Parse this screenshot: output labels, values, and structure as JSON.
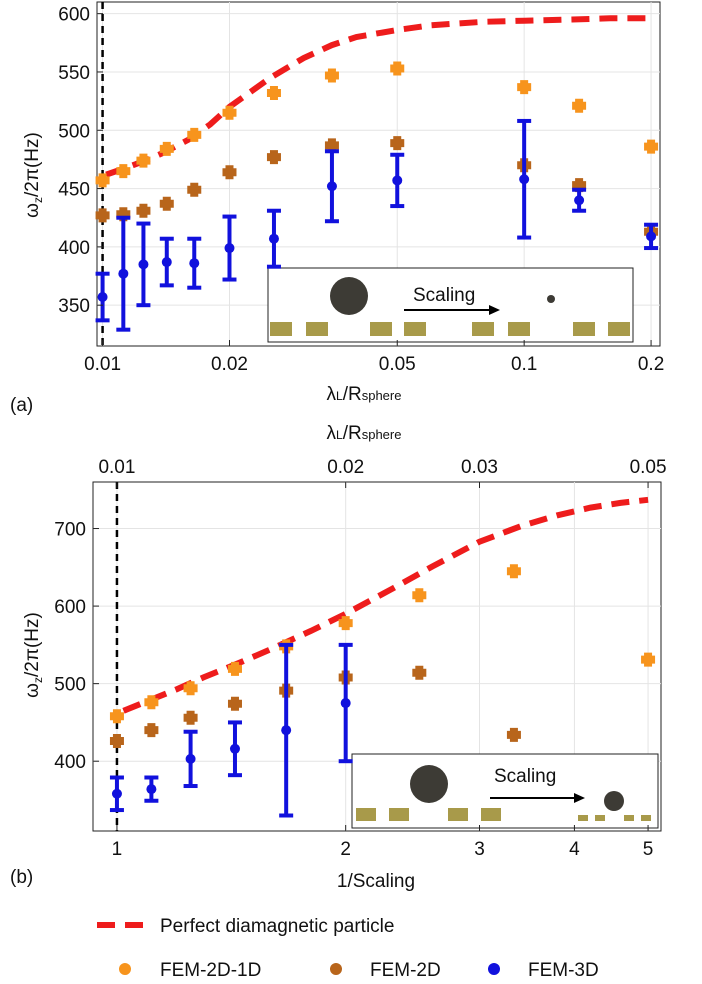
{
  "legend": {
    "perfect": "Perfect diamagnetic particle",
    "fem2d1d": "FEM-2D-1D",
    "fem2d": "FEM-2D",
    "fem3d": "FEM-3D"
  },
  "colors": {
    "perfect": "#ee1c1c",
    "fem2d1d": "#f7941d",
    "fem2d": "#b8651b",
    "fem3d": "#1111dd",
    "magnet": "#a89a4a",
    "sphere": "#3d3b35"
  },
  "chart_data": [
    {
      "panel": "(a)",
      "type": "scatter",
      "xscale": "log",
      "xlabel": "λL/Rsphere",
      "ylabel": "ωz/2π(Hz)",
      "xlim": [
        0.0097,
        0.21
      ],
      "ylim": [
        315,
        610
      ],
      "xticks": [
        0.01,
        0.02,
        0.05,
        0.1,
        0.2
      ],
      "xtick_labels": [
        "0.01",
        "0.02",
        "0.05",
        "0.1",
        "0.2"
      ],
      "yticks": [
        350,
        400,
        450,
        500,
        550,
        600
      ],
      "vline_x": 0.01,
      "inset_label": "Scaling",
      "perfect_curve": {
        "x": [
          0.0102,
          0.011,
          0.012,
          0.013,
          0.014,
          0.016,
          0.018,
          0.02,
          0.025,
          0.03,
          0.035,
          0.04,
          0.05,
          0.06,
          0.08,
          0.1,
          0.13,
          0.16,
          0.2
        ],
        "y": [
          462,
          466,
          471,
          476,
          481,
          492,
          505,
          520,
          545,
          562,
          573,
          580,
          586,
          590,
          593,
          594,
          595,
          596,
          596
        ]
      },
      "fem2d1d": {
        "x": [
          0.01,
          0.0112,
          0.0125,
          0.0142,
          0.0165,
          0.02,
          0.0255,
          0.035,
          0.05,
          0.1,
          0.135,
          0.2
        ],
        "y": [
          457,
          465,
          474,
          484,
          496,
          515,
          532,
          547,
          553,
          537,
          521,
          486
        ]
      },
      "fem2d": {
        "x": [
          0.01,
          0.0112,
          0.0125,
          0.0142,
          0.0165,
          0.02,
          0.0255,
          0.035,
          0.05,
          0.1,
          0.135,
          0.2
        ],
        "y": [
          427,
          428,
          431,
          437,
          449,
          464,
          477,
          487,
          489,
          470,
          453,
          413
        ]
      },
      "fem3d": {
        "x": [
          0.01,
          0.0112,
          0.0125,
          0.0142,
          0.0165,
          0.02,
          0.0255,
          0.035,
          0.05,
          0.1,
          0.135,
          0.2
        ],
        "y": [
          357,
          377,
          385,
          387,
          386,
          399,
          407,
          452,
          457,
          458,
          440,
          409
        ],
        "err": [
          20,
          48,
          35,
          20,
          21,
          27,
          24,
          30,
          22,
          50,
          9,
          10
        ]
      }
    },
    {
      "panel": "(b)",
      "type": "scatter",
      "xscale": "log",
      "xlabel": "1/Scaling",
      "ylabel": "ωz/2π(Hz)",
      "top_xlabel": "λL/Rsphere",
      "xlim": [
        0.93,
        5.2
      ],
      "ylim": [
        310,
        760
      ],
      "xticks": [
        1,
        2,
        3,
        4,
        5
      ],
      "xtick_labels": [
        "1",
        "2",
        "3",
        "4",
        "5"
      ],
      "top_xticks": [
        1,
        2,
        3,
        5
      ],
      "top_xtick_labels": [
        "0.01",
        "0.02",
        "0.03",
        "0.05"
      ],
      "yticks": [
        400,
        500,
        600,
        700
      ],
      "vline_x": 1,
      "inset_label": "Scaling",
      "perfect_curve": {
        "x": [
          1.02,
          1.1,
          1.2,
          1.3,
          1.45,
          1.6,
          1.8,
          2.0,
          2.3,
          2.6,
          3.0,
          3.4,
          3.8,
          4.2,
          4.6,
          5.0
        ],
        "y": [
          465,
          478,
          493,
          508,
          527,
          545,
          568,
          590,
          622,
          651,
          683,
          703,
          717,
          727,
          733,
          737
        ]
      },
      "fem2d1d": {
        "x": [
          1,
          1.11,
          1.25,
          1.43,
          1.67,
          2.0,
          2.5,
          3.33,
          5.0
        ],
        "y": [
          458,
          476,
          494,
          519,
          548,
          578,
          614,
          645,
          531
        ]
      },
      "fem2d": {
        "x": [
          1,
          1.11,
          1.25,
          1.43,
          1.67,
          2.0,
          2.5,
          3.33
        ],
        "y": [
          426,
          440,
          456,
          474,
          491,
          508,
          514,
          434
        ]
      },
      "fem3d": {
        "x": [
          1,
          1.11,
          1.25,
          1.43,
          1.67,
          2.0
        ],
        "y": [
          358,
          364,
          403,
          416,
          440,
          475
        ],
        "err": [
          21,
          15,
          35,
          34,
          110,
          75
        ]
      }
    }
  ]
}
